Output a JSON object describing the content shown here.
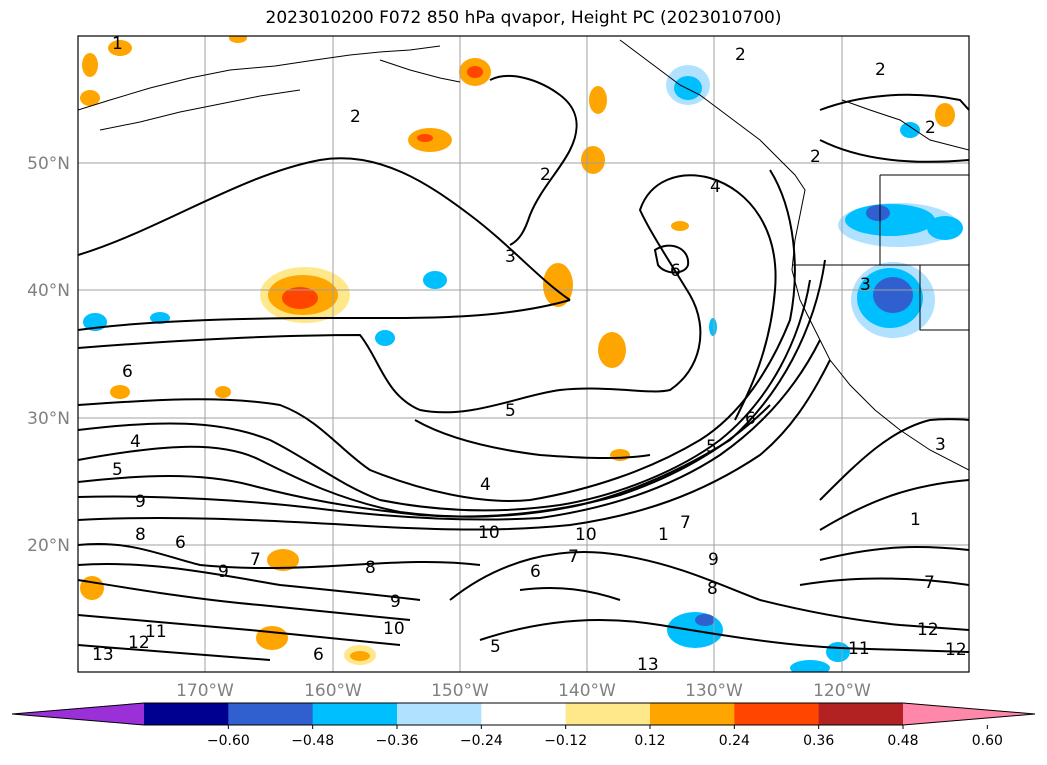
{
  "title": "2023010200 F072 850 hPa qvapor, Height PC (2023010700)",
  "latitude_labels": [
    "50°N",
    "40°N",
    "30°N",
    "20°N"
  ],
  "longitude_labels": [
    "170°W",
    "160°W",
    "150°W",
    "140°W",
    "130°W",
    "120°W"
  ],
  "colorbar": {
    "colors": [
      "#9b30d9",
      "#000090",
      "#3060d0",
      "#00bfff",
      "#b0e2ff",
      "#ffffff",
      "#ffe88a",
      "#ffa500",
      "#ff4500",
      "#b22222",
      "#ff88aa"
    ],
    "tick_labels": [
      "−0.60",
      "−0.48",
      "−0.36",
      "−0.24",
      "−0.12",
      "0.12",
      "0.24",
      "0.36",
      "0.48",
      "0.60"
    ]
  },
  "contour_labels": [
    "1",
    "2",
    "2",
    "2",
    "2",
    "2",
    "2",
    "3",
    "3",
    "3",
    "4",
    "4",
    "5",
    "5",
    "5",
    "5",
    "6",
    "6",
    "6",
    "6",
    "6",
    "7",
    "7",
    "7",
    "8",
    "8",
    "8",
    "9",
    "9",
    "9",
    "9",
    "10",
    "10",
    "10",
    "11",
    "11",
    "12",
    "12",
    "12",
    "13",
    "13",
    "1",
    "1",
    "4",
    "6",
    "7"
  ],
  "gridline_color": "#a0a0a0"
}
